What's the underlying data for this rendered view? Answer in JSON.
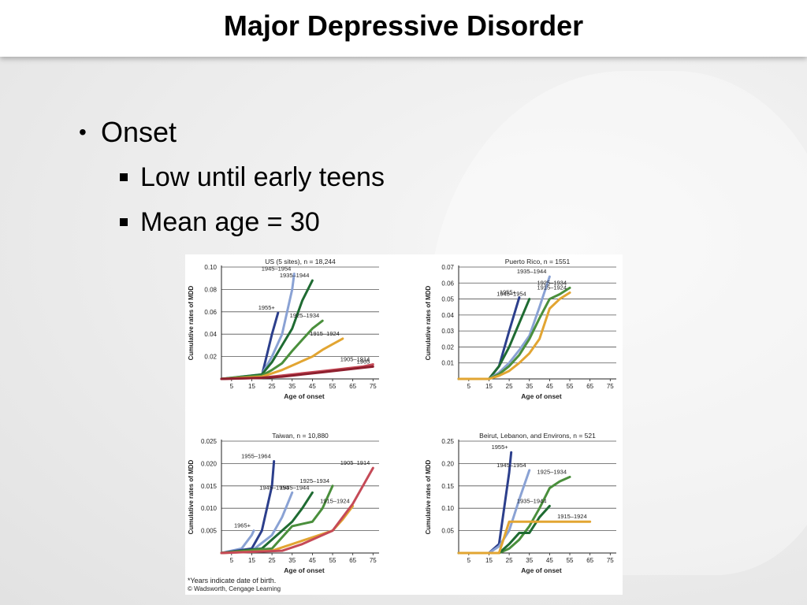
{
  "slide": {
    "title": "Major Depressive Disorder",
    "bullet": "Onset",
    "sub_bullets": [
      "Low until early teens",
      "Mean age = 30"
    ]
  },
  "figure": {
    "footnote": "*Years indicate date of birth.",
    "credit": "© Wadsworth, Cengage Learning"
  },
  "chart_data": [
    {
      "type": "line",
      "title": "US (5 sites), n = 18,244",
      "xlabel": "Age of onset",
      "ylabel": "Cumulative rates of MDD",
      "xticks": [
        5,
        15,
        25,
        35,
        45,
        55,
        65,
        75
      ],
      "ylim": [
        0,
        0.1
      ],
      "yticks": [
        "0.02",
        "0.04",
        "0.06",
        "0.08",
        "0.10"
      ],
      "series": [
        {
          "name": "1955+",
          "color": "#2c3f8c",
          "x": [
            0,
            20,
            25,
            28
          ],
          "y": [
            0,
            0.003,
            0.04,
            0.059
          ]
        },
        {
          "name": "1945–1954",
          "color": "#8aa2d4",
          "x": [
            0,
            20,
            25,
            30,
            35,
            36
          ],
          "y": [
            0,
            0.004,
            0.02,
            0.04,
            0.08,
            0.094
          ]
        },
        {
          "name": "1935–1944",
          "color": "#1f6b32",
          "x": [
            0,
            20,
            25,
            30,
            35,
            40,
            45
          ],
          "y": [
            0,
            0.004,
            0.015,
            0.03,
            0.045,
            0.07,
            0.088
          ]
        },
        {
          "name": "1925–1934",
          "color": "#4a8f3c",
          "x": [
            0,
            20,
            25,
            30,
            35,
            40,
            45,
            50
          ],
          "y": [
            0,
            0.003,
            0.008,
            0.014,
            0.025,
            0.035,
            0.045,
            0.052
          ]
        },
        {
          "name": "1915–1924",
          "color": "#e2a532",
          "x": [
            0,
            20,
            25,
            30,
            35,
            40,
            45,
            50,
            55,
            60
          ],
          "y": [
            0,
            0.002,
            0.005,
            0.008,
            0.012,
            0.016,
            0.02,
            0.026,
            0.031,
            0.036
          ]
        },
        {
          "name": "1905–1914",
          "color": "#c54a57",
          "x": [
            0,
            20,
            30,
            40,
            50,
            60,
            70,
            75
          ],
          "y": [
            0,
            0.001,
            0.003,
            0.005,
            0.007,
            0.009,
            0.011,
            0.013
          ]
        },
        {
          "name": "1905",
          "color": "#8e1f2e",
          "x": [
            0,
            20,
            30,
            40,
            50,
            60,
            70,
            75
          ],
          "y": [
            0,
            0.001,
            0.002,
            0.004,
            0.006,
            0.008,
            0.01,
            0.011
          ]
        }
      ]
    },
    {
      "type": "line",
      "title": "Puerto Rico, n = 1551",
      "xlabel": "Age of onset",
      "ylabel": "Cumulative rates of MDD",
      "xticks": [
        5,
        15,
        25,
        35,
        45,
        55,
        65,
        75
      ],
      "ylim": [
        0,
        0.07
      ],
      "yticks": [
        "0.01",
        "0.02",
        "0.03",
        "0.04",
        "0.05",
        "0.06",
        "0.07"
      ],
      "series": [
        {
          "name": "1955+",
          "color": "#2c3f8c",
          "x": [
            0,
            15,
            20,
            25,
            30
          ],
          "y": [
            0,
            0.0,
            0.008,
            0.03,
            0.051
          ]
        },
        {
          "name": "1945–1954",
          "color": "#1f6b32",
          "x": [
            0,
            15,
            20,
            25,
            30,
            35
          ],
          "y": [
            0,
            0.0,
            0.008,
            0.02,
            0.035,
            0.05
          ]
        },
        {
          "name": "1935–1944",
          "color": "#8aa2d4",
          "x": [
            0,
            15,
            20,
            25,
            30,
            35,
            40,
            45
          ],
          "y": [
            0,
            0.0,
            0.004,
            0.01,
            0.018,
            0.027,
            0.045,
            0.064
          ]
        },
        {
          "name": "1925–1934",
          "color": "#4a8f3c",
          "x": [
            0,
            15,
            20,
            25,
            30,
            35,
            40,
            45,
            50,
            55
          ],
          "y": [
            0,
            0.0,
            0.003,
            0.008,
            0.015,
            0.025,
            0.038,
            0.05,
            0.053,
            0.057
          ]
        },
        {
          "name": "1915–1924",
          "color": "#e2a532",
          "x": [
            0,
            15,
            20,
            25,
            30,
            35,
            40,
            45,
            50,
            55
          ],
          "y": [
            0,
            0.0,
            0.002,
            0.005,
            0.01,
            0.016,
            0.025,
            0.044,
            0.05,
            0.054
          ]
        }
      ]
    },
    {
      "type": "line",
      "title": "Taiwan, n = 10,880",
      "xlabel": "Age of onset",
      "ylabel": "Cumulative rates of MDD",
      "xticks": [
        5,
        15,
        25,
        35,
        45,
        55,
        65,
        75
      ],
      "ylim": [
        0,
        0.025
      ],
      "yticks": [
        "0.005",
        "0.010",
        "0.015",
        "0.020",
        "0.025"
      ],
      "series": [
        {
          "name": "1965+",
          "color": "#8aa2d4",
          "x": [
            0,
            10,
            15,
            16
          ],
          "y": [
            0,
            0.001,
            0.004,
            0.005
          ]
        },
        {
          "name": "1955–1964",
          "color": "#2c3f8c",
          "x": [
            0,
            15,
            20,
            25,
            26
          ],
          "y": [
            0,
            0.001,
            0.005,
            0.015,
            0.0205
          ]
        },
        {
          "name": "1945–1954",
          "color": "#8aa2d4",
          "x": [
            0,
            15,
            25,
            30,
            35
          ],
          "y": [
            0,
            0.0005,
            0.004,
            0.008,
            0.0135
          ]
        },
        {
          "name": "1935–1944",
          "color": "#1f6b32",
          "x": [
            0,
            20,
            25,
            30,
            35,
            40,
            45
          ],
          "y": [
            0,
            0.001,
            0.003,
            0.005,
            0.007,
            0.01,
            0.0135
          ]
        },
        {
          "name": "1925–1934",
          "color": "#4a8f3c",
          "x": [
            0,
            25,
            35,
            40,
            45,
            50,
            55
          ],
          "y": [
            0,
            0.001,
            0.006,
            0.0065,
            0.007,
            0.01,
            0.015
          ]
        },
        {
          "name": "1915–1924",
          "color": "#e2a532",
          "x": [
            0,
            25,
            35,
            45,
            55,
            60,
            65
          ],
          "y": [
            0,
            0.0005,
            0.002,
            0.0035,
            0.005,
            0.0075,
            0.0105
          ]
        },
        {
          "name": "1905–1914",
          "color": "#c54a57",
          "x": [
            0,
            30,
            40,
            50,
            55,
            60,
            65,
            70,
            75
          ],
          "y": [
            0,
            0.0005,
            0.002,
            0.004,
            0.005,
            0.008,
            0.011,
            0.015,
            0.019
          ]
        }
      ]
    },
    {
      "type": "line",
      "title": "Beirut, Lebanon, and Environs, n = 521",
      "xlabel": "Age of onset",
      "ylabel": "Cumulative rates of MDD",
      "xticks": [
        5,
        15,
        25,
        35,
        45,
        55,
        65,
        75
      ],
      "ylim": [
        0,
        0.25
      ],
      "yticks": [
        "0.05",
        "0.10",
        "0.15",
        "0.20",
        "0.25"
      ],
      "series": [
        {
          "name": "1955+",
          "color": "#2c3f8c",
          "x": [
            0,
            15,
            20,
            25,
            26
          ],
          "y": [
            0,
            0.0,
            0.02,
            0.18,
            0.225
          ]
        },
        {
          "name": "1945–1954",
          "color": "#8aa2d4",
          "x": [
            0,
            15,
            20,
            25,
            30,
            35
          ],
          "y": [
            0,
            0.0,
            0.015,
            0.05,
            0.12,
            0.185
          ]
        },
        {
          "name": "1925–1934",
          "color": "#4a8f3c",
          "x": [
            0,
            20,
            25,
            30,
            35,
            40,
            45,
            50,
            55
          ],
          "y": [
            0,
            0.0,
            0.01,
            0.03,
            0.06,
            0.1,
            0.145,
            0.16,
            0.17
          ]
        },
        {
          "name": "1935–1944",
          "color": "#1f6b32",
          "x": [
            0,
            20,
            25,
            30,
            35,
            40,
            45
          ],
          "y": [
            0,
            0.0,
            0.02,
            0.045,
            0.045,
            0.08,
            0.105
          ]
        },
        {
          "name": "1915–1924",
          "color": "#e2a532",
          "x": [
            0,
            20,
            25,
            30,
            40,
            50,
            60,
            65
          ],
          "y": [
            0,
            0.0,
            0.07,
            0.07,
            0.07,
            0.07,
            0.07,
            0.07
          ]
        }
      ]
    }
  ]
}
